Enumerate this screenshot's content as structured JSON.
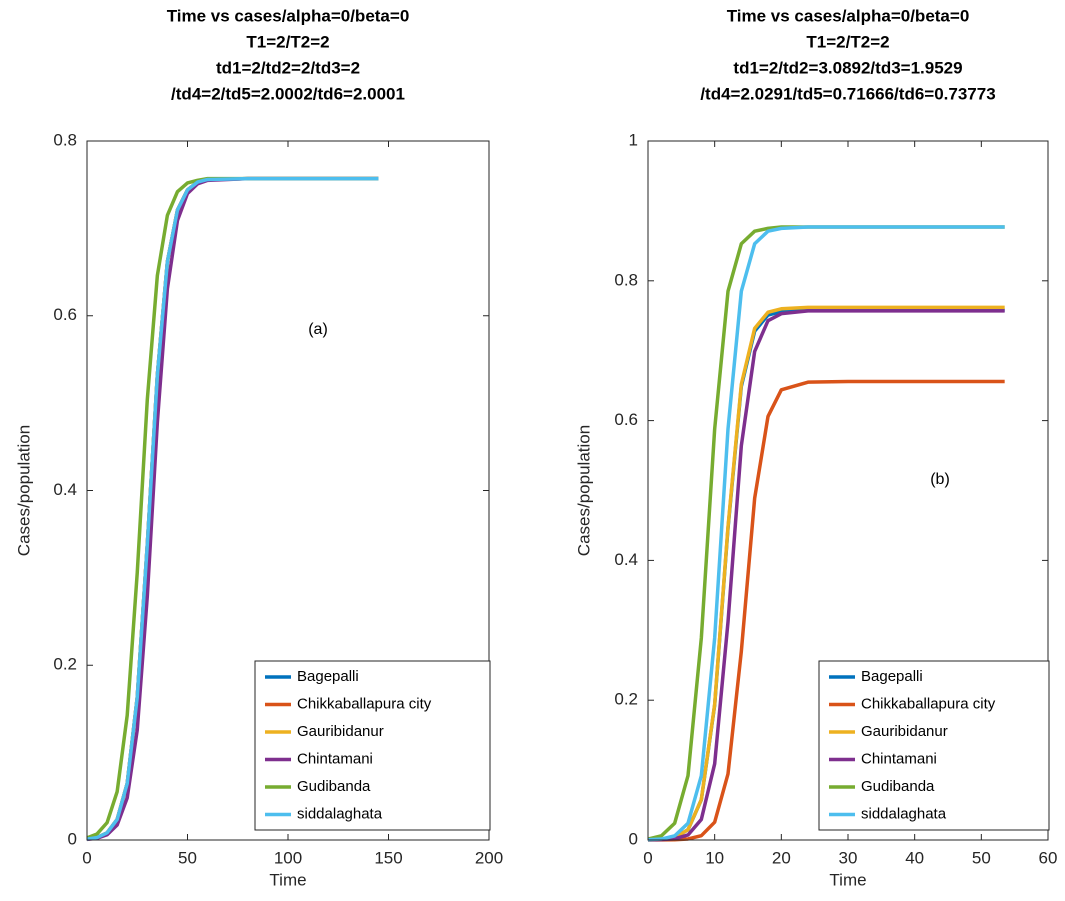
{
  "chart_data": [
    {
      "type": "line",
      "title": [
        "Time vs cases/alpha=0/beta=0",
        "T1=2/T2=2",
        "td1=2/td2=2/td3=2",
        "/td4=2/td5=2.0002/td6=2.0001"
      ],
      "xlabel": "Time",
      "ylabel": "Cases/population",
      "annotation": "(a)",
      "legend": "lower right",
      "xlim": [
        0,
        200
      ],
      "ylim": [
        0,
        0.8
      ],
      "xticks": [
        0,
        50,
        100,
        150,
        200
      ],
      "yticks": [
        0,
        0.2,
        0.4,
        0.6,
        0.8
      ],
      "x": [
        0,
        5,
        10,
        15,
        20,
        25,
        30,
        35,
        40,
        45,
        50,
        55,
        60,
        80,
        100,
        120,
        145
      ],
      "series": [
        {
          "name": "Bagepalli",
          "color": "#0072bd",
          "values": [
            0.001,
            0.0028,
            0.0082,
            0.0235,
            0.0647,
            0.1635,
            0.338,
            0.532,
            0.662,
            0.721,
            0.744,
            0.753,
            0.756,
            0.757,
            0.757,
            0.757,
            0.757
          ]
        },
        {
          "name": "Chikkaballapura city",
          "color": "#d95319",
          "values": [
            0.001,
            0.0028,
            0.0082,
            0.0235,
            0.0647,
            0.1635,
            0.338,
            0.532,
            0.662,
            0.721,
            0.744,
            0.753,
            0.756,
            0.757,
            0.757,
            0.757,
            0.757
          ]
        },
        {
          "name": "Gauribidanur",
          "color": "#edb120",
          "values": [
            0.001,
            0.0028,
            0.0082,
            0.0235,
            0.0647,
            0.1635,
            0.338,
            0.532,
            0.662,
            0.721,
            0.744,
            0.753,
            0.756,
            0.757,
            0.757,
            0.757,
            0.757
          ]
        },
        {
          "name": "Chintamani",
          "color": "#7e2f8e",
          "values": [
            0.0007,
            0.002,
            0.006,
            0.0172,
            0.0482,
            0.126,
            0.279,
            0.478,
            0.631,
            0.709,
            0.74,
            0.751,
            0.755,
            0.757,
            0.757,
            0.757,
            0.757
          ]
        },
        {
          "name": "Gudibanda",
          "color": "#77ac30",
          "values": [
            0.0024,
            0.0069,
            0.0199,
            0.0553,
            0.1426,
            0.306,
            0.504,
            0.646,
            0.715,
            0.742,
            0.752,
            0.755,
            0.757,
            0.757,
            0.757,
            0.757,
            0.757
          ]
        },
        {
          "name": "siddalaghata",
          "color": "#4dbeee",
          "values": [
            0.001,
            0.0028,
            0.0082,
            0.0235,
            0.0647,
            0.1635,
            0.338,
            0.532,
            0.662,
            0.721,
            0.744,
            0.753,
            0.756,
            0.757,
            0.757,
            0.757,
            0.757
          ]
        }
      ]
    },
    {
      "type": "line",
      "title": [
        "Time vs cases/alpha=0/beta=0",
        "T1=2/T2=2",
        "td1=2/td2=3.0892/td3=1.9529",
        "/td4=2.0291/td5=0.71666/td6=0.73773"
      ],
      "xlabel": "Time",
      "ylabel": "Cases/population",
      "annotation": "(b)",
      "legend": "lower right",
      "xlim": [
        0,
        60
      ],
      "ylim": [
        0,
        1
      ],
      "xticks": [
        0,
        10,
        20,
        30,
        40,
        50,
        60
      ],
      "yticks": [
        0,
        0.2,
        0.4,
        0.6,
        0.8,
        1
      ],
      "x": [
        0,
        2,
        4,
        6,
        8,
        10,
        12,
        14,
        16,
        18,
        20,
        24,
        30,
        40,
        53.5
      ],
      "series": [
        {
          "name": "Bagepalli",
          "color": "#0072bd",
          "values": [
            0.0002,
            0.0008,
            0.0036,
            0.0146,
            0.0576,
            0.193,
            0.446,
            0.649,
            0.728,
            0.751,
            0.756,
            0.758,
            0.758,
            0.758,
            0.758
          ]
        },
        {
          "name": "Chikkaballapura city",
          "color": "#d95319",
          "values": [
            0,
            0.0001,
            0.0004,
            0.0015,
            0.0062,
            0.0255,
            0.0945,
            0.27,
            0.489,
            0.606,
            0.644,
            0.655,
            0.656,
            0.656,
            0.656
          ]
        },
        {
          "name": "Gauribidanur",
          "color": "#edb120",
          "values": [
            0.0002,
            0.0008,
            0.0036,
            0.0147,
            0.0579,
            0.194,
            0.448,
            0.652,
            0.732,
            0.755,
            0.76,
            0.762,
            0.762,
            0.762,
            0.762
          ]
        },
        {
          "name": "Chintamani",
          "color": "#7e2f8e",
          "values": [
            0.0001,
            0.0005,
            0.0017,
            0.0072,
            0.0294,
            0.109,
            0.312,
            0.564,
            0.699,
            0.743,
            0.753,
            0.757,
            0.757,
            0.757,
            0.757
          ]
        },
        {
          "name": "Gudibanda",
          "color": "#77ac30",
          "values": [
            0.0014,
            0.0059,
            0.024,
            0.092,
            0.289,
            0.588,
            0.785,
            0.853,
            0.871,
            0.875,
            0.877,
            0.877,
            0.877,
            0.877,
            0.877
          ]
        },
        {
          "name": "siddalaghata",
          "color": "#4dbeee",
          "values": [
            0.0004,
            0.0014,
            0.0059,
            0.024,
            0.092,
            0.289,
            0.588,
            0.785,
            0.853,
            0.871,
            0.875,
            0.877,
            0.877,
            0.877,
            0.877
          ]
        }
      ]
    }
  ]
}
